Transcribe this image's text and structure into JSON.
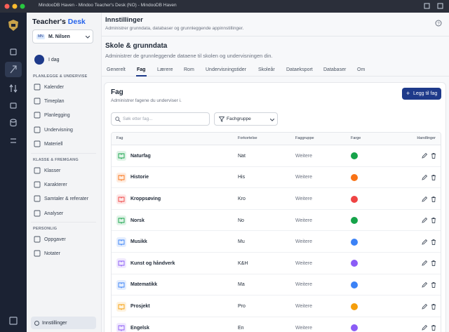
{
  "window": {
    "title": "MindooDB Haven - Mindoo Teacher's Desk (NO) - MindooDB Haven"
  },
  "sidebar": {
    "brand": {
      "name": "Teacher's",
      "accent": "Desk"
    },
    "user": {
      "initials": "MN",
      "name": "M. Nilsen"
    },
    "today": "I dag",
    "sections": [
      {
        "heading": "PLANLEGGE & UNDERVISE",
        "items": [
          "Kalender",
          "Timeplan",
          "Planlegging",
          "Undervisning",
          "Materiell"
        ]
      },
      {
        "heading": "KLASSE & FREMGANG",
        "items": [
          "Klasser",
          "Karakterer",
          "Samtaler & referater",
          "Analyser"
        ]
      },
      {
        "heading": "PERSONLIG",
        "items": [
          "Oppgaver",
          "Notater"
        ]
      }
    ],
    "settings": "Innstillinger"
  },
  "header": {
    "title": "Innstillinger",
    "subtitle": "Administrer grunndata, databaser og grunnleggende appinnstillinger."
  },
  "page": {
    "title": "Skole & grunndata",
    "subtitle": "Administrer de grunnleggende dataene til skolen og undervisningen din.",
    "tabs": [
      "Generelt",
      "Fag",
      "Lærere",
      "Rom",
      "Undervisningstider",
      "Skoleår",
      "Dataeksport",
      "Databaser",
      "Om"
    ]
  },
  "card": {
    "title": "Fag",
    "subtitle": "Administrer fagene du underviser i.",
    "add_button": "Legg til fag",
    "search_placeholder": "Søk etter fag...",
    "filter": "Fachgruppe",
    "table": {
      "columns": [
        "Fag",
        "Forkortelse",
        "Faggruppe",
        "Farge",
        "Handlinger"
      ],
      "rows": [
        {
          "name": "Naturfag",
          "abbr": "Nat",
          "group": "Weitere",
          "color": "#16a34a"
        },
        {
          "name": "Historie",
          "abbr": "His",
          "group": "Weitere",
          "color": "#f97316"
        },
        {
          "name": "Kroppsøving",
          "abbr": "Kro",
          "group": "Weitere",
          "color": "#ef4444"
        },
        {
          "name": "Norsk",
          "abbr": "No",
          "group": "Weitere",
          "color": "#16a34a"
        },
        {
          "name": "Musikk",
          "abbr": "Mu",
          "group": "Weitere",
          "color": "#3b82f6"
        },
        {
          "name": "Kunst og håndverk",
          "abbr": "K&H",
          "group": "Weitere",
          "color": "#8b5cf6"
        },
        {
          "name": "Matematikk",
          "abbr": "Ma",
          "group": "Weitere",
          "color": "#3b82f6"
        },
        {
          "name": "Prosjekt",
          "abbr": "Pro",
          "group": "Weitere",
          "color": "#f59e0b"
        },
        {
          "name": "Engelsk",
          "abbr": "En",
          "group": "Weitere",
          "color": "#8b5cf6"
        }
      ]
    }
  }
}
